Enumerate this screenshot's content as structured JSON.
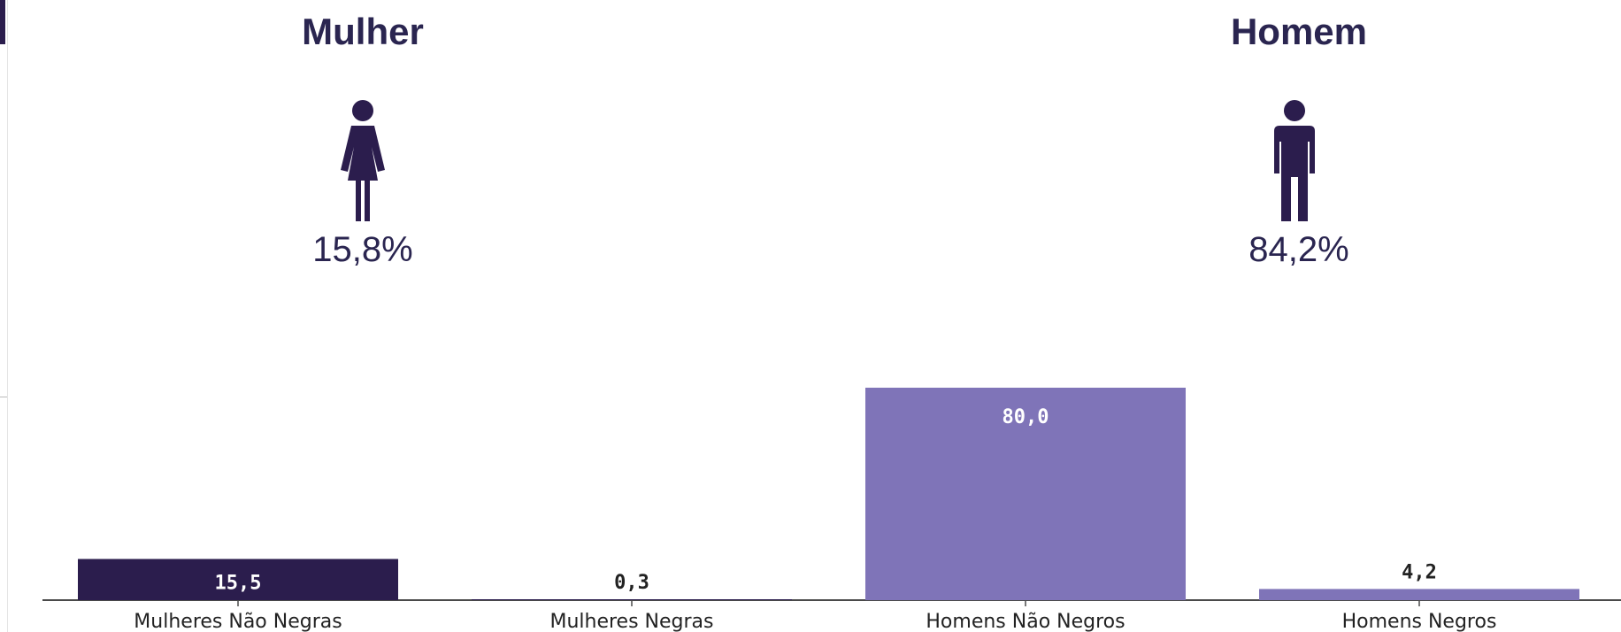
{
  "groups": {
    "mulher": {
      "title": "Mulher",
      "percent": "15,8%",
      "icon": "woman-icon"
    },
    "homem": {
      "title": "Homem",
      "percent": "84,2%",
      "icon": "man-icon"
    }
  },
  "colors": {
    "dark": "#2b1d4d",
    "light": "#7f74b8",
    "text": "#2a2550",
    "accent": "#2b1d4d"
  },
  "chart_data": {
    "type": "bar",
    "categories": [
      "Mulheres Não Negras",
      "Mulheres Negras",
      "Homens Não Negros",
      "Homens Negros"
    ],
    "values": [
      15.5,
      0.3,
      80.0,
      4.2
    ],
    "value_labels": [
      "15,5",
      "0,3",
      "80,0",
      "4,2"
    ],
    "bar_colors": [
      "#2b1d4d",
      "#2b1d4d",
      "#7f74b8",
      "#7f74b8"
    ],
    "ylim": [
      0,
      100
    ],
    "grid": false,
    "legend": "none"
  }
}
